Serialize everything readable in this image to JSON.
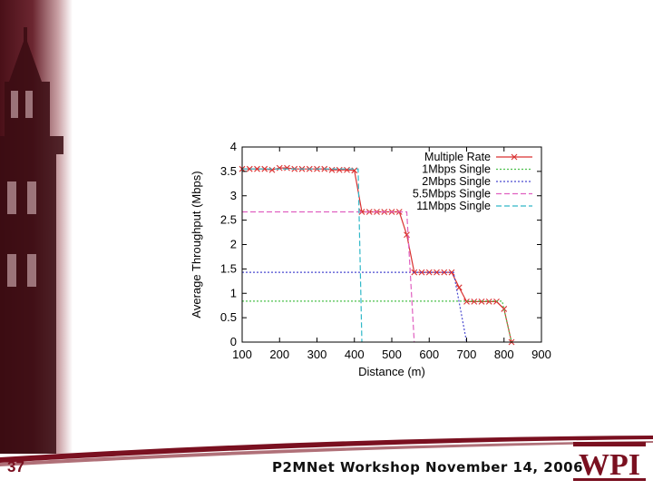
{
  "slide": {
    "number": "37",
    "footer": "P2MNet Workshop November 14, 2006",
    "logo_text": "WPI",
    "accent": "#7a1020"
  },
  "chart_data": {
    "type": "line",
    "xlabel": "Distance (m)",
    "ylabel": "Average Throughput (Mbps)",
    "xlim": [
      100,
      900
    ],
    "ylim": [
      0,
      4
    ],
    "xticks": [
      100,
      200,
      300,
      400,
      500,
      600,
      700,
      800,
      900
    ],
    "yticks": [
      0,
      0.5,
      1,
      1.5,
      2,
      2.5,
      3,
      3.5,
      4
    ],
    "ytick_labels": [
      "0",
      "0.5",
      "1",
      "1.5",
      "2",
      "2.5",
      "3",
      "3.5",
      "4"
    ],
    "legend_position": "top-right",
    "series": [
      {
        "name": "Multiple Rate",
        "color": "#d93030",
        "dash": "",
        "marker": "x",
        "x": [
          100,
          120,
          140,
          160,
          180,
          200,
          220,
          240,
          260,
          280,
          300,
          320,
          340,
          360,
          380,
          400,
          420,
          440,
          460,
          480,
          500,
          520,
          540,
          560,
          580,
          600,
          620,
          640,
          660,
          680,
          700,
          720,
          740,
          760,
          780,
          800,
          820
        ],
        "y": [
          3.55,
          3.55,
          3.55,
          3.55,
          3.53,
          3.57,
          3.57,
          3.55,
          3.55,
          3.55,
          3.55,
          3.55,
          3.53,
          3.53,
          3.53,
          3.52,
          2.67,
          2.67,
          2.67,
          2.67,
          2.67,
          2.67,
          2.2,
          1.43,
          1.43,
          1.43,
          1.43,
          1.43,
          1.43,
          1.12,
          0.83,
          0.83,
          0.83,
          0.83,
          0.83,
          0.68,
          0.0
        ]
      },
      {
        "name": "1Mbps Single",
        "color": "#4cc04c",
        "dash": "2 2",
        "x": [
          100,
          795,
          820
        ],
        "y": [
          0.84,
          0.84,
          0.0
        ]
      },
      {
        "name": "2Mbps Single",
        "color": "#4a4ad0",
        "dash": "2 2",
        "x": [
          100,
          665,
          700
        ],
        "y": [
          1.43,
          1.43,
          0.0
        ]
      },
      {
        "name": "5.5Mbps Single",
        "color": "#e060c0",
        "dash": "6 3",
        "x": [
          100,
          540,
          560
        ],
        "y": [
          2.67,
          2.67,
          0.0
        ]
      },
      {
        "name": "11Mbps Single",
        "color": "#30b8c8",
        "dash": "6 3",
        "x": [
          100,
          410,
          420
        ],
        "y": [
          3.55,
          3.55,
          0.0
        ]
      }
    ]
  }
}
